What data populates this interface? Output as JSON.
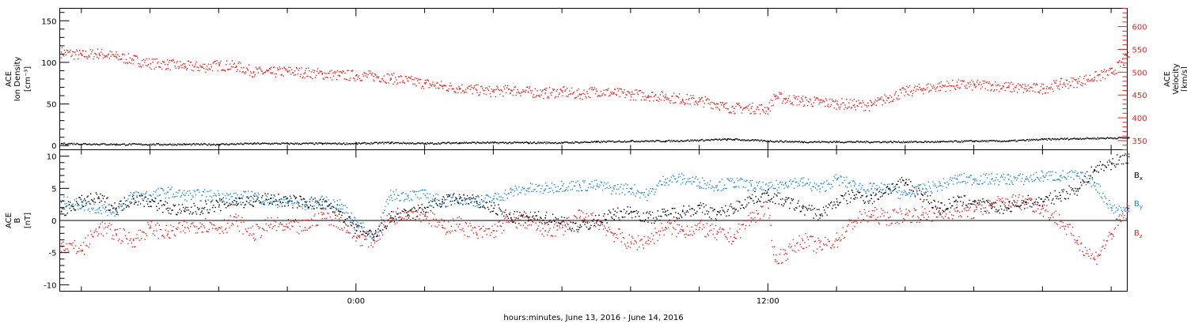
{
  "colors": {
    "black": "#000000",
    "red": "#e8231f",
    "blue": "#1f88d6"
  },
  "xaxis": {
    "label": "hours:minutes, June 13, 2016 - June 14, 2016",
    "range_hours": [
      -8.63,
      22.47
    ],
    "major_ticks": [
      {
        "hour": 0,
        "label": "0:00"
      },
      {
        "hour": 12,
        "label": "12:00"
      }
    ],
    "minor_tick_step_hours": 2
  },
  "chart_data": [
    {
      "type": "scatter",
      "panel": "top",
      "left_axis": {
        "label_lines": [
          "ACE",
          "Ion Density"
        ],
        "unit": "[cm⁻³]",
        "ylim": [
          -5,
          165
        ],
        "ticks": [
          0,
          50,
          100,
          150
        ],
        "tick_labels": [
          "0",
          "50",
          "100",
          "150"
        ]
      },
      "right_axis": {
        "label_lines": [
          "ACE",
          "Velocity"
        ],
        "unit": "[km/s]",
        "ylim": [
          330,
          640
        ],
        "ticks": [
          350,
          400,
          450,
          500,
          550,
          600
        ],
        "tick_labels": [
          "350",
          "400",
          "450",
          "500",
          "550",
          "600"
        ],
        "color": "#e8231f"
      },
      "series": [
        {
          "color": "#000000",
          "axis": "left",
          "x_hours": [
            -8.6,
            -7,
            -5,
            -4,
            -3,
            -2,
            -1,
            0,
            1,
            2,
            3,
            4,
            5,
            6,
            7,
            8,
            9,
            10,
            10.8,
            11,
            12,
            13,
            14,
            15,
            16,
            17,
            18,
            19,
            20,
            21,
            22.5
          ],
          "values": [
            3,
            2,
            2,
            2,
            3,
            3,
            3,
            3,
            4,
            3,
            4,
            4,
            4,
            4,
            5,
            6,
            6,
            7,
            8,
            8,
            6,
            5,
            5,
            5,
            5,
            5,
            6,
            6,
            8,
            9,
            10
          ]
        },
        {
          "color": "#e8231f",
          "axis": "right",
          "x_hours": [
            -8.6,
            -8,
            -7.5,
            -7,
            -6.5,
            -6,
            -5.5,
            -5,
            -4.5,
            -4,
            -3.5,
            -3,
            -2.5,
            -2,
            -1.5,
            -1,
            -0.5,
            0,
            0.5,
            1,
            1.5,
            2,
            2.5,
            3,
            3.5,
            4,
            4.5,
            5,
            5.5,
            6,
            6.5,
            7,
            7.5,
            8,
            8.5,
            9,
            9.5,
            10,
            10.5,
            10.7,
            11,
            11.5,
            12,
            12.2,
            12.5,
            13,
            13.5,
            14,
            14.5,
            15,
            15.5,
            16,
            16.5,
            17,
            17.5,
            18,
            18.5,
            19,
            19.5,
            20,
            20.5,
            21,
            21.5,
            22,
            22.5
          ],
          "values": [
            545,
            538,
            542,
            535,
            528,
            520,
            518,
            514,
            512,
            516,
            514,
            502,
            500,
            503,
            500,
            497,
            494,
            494,
            492,
            488,
            482,
            476,
            470,
            466,
            462,
            458,
            462,
            458,
            455,
            458,
            452,
            460,
            455,
            452,
            450,
            447,
            442,
            438,
            432,
            425,
            422,
            422,
            420,
            448,
            442,
            438,
            435,
            432,
            430,
            428,
            445,
            458,
            465,
            470,
            473,
            472,
            472,
            468,
            465,
            465,
            475,
            480,
            490,
            500,
            535
          ]
        }
      ]
    },
    {
      "type": "scatter",
      "panel": "bottom",
      "left_axis": {
        "label_lines": [
          "ACE",
          "B"
        ],
        "unit": "[nT]",
        "ylim": [
          -11,
          11
        ],
        "ticks": [
          -10,
          -5,
          0,
          5,
          10
        ],
        "tick_labels": [
          "-10",
          "-5",
          "0",
          "5",
          "10"
        ]
      },
      "series": [
        {
          "name": "Bx",
          "color": "#000000",
          "x_hours": [
            -8.6,
            -8,
            -7.5,
            -7,
            -6.5,
            -6,
            -5.5,
            -5,
            -4.5,
            -4,
            -3.5,
            -3,
            -2.5,
            -2,
            -1.5,
            -1,
            -0.5,
            0,
            0.5,
            1,
            1.5,
            2,
            2.5,
            3,
            3.5,
            4,
            4.5,
            5,
            5.5,
            6,
            6.5,
            7,
            7.5,
            8,
            8.5,
            9,
            9.5,
            10,
            10.5,
            11,
            11.5,
            12,
            12.5,
            13,
            13.5,
            14,
            14.5,
            15,
            15.5,
            16,
            16.5,
            17,
            17.5,
            18,
            18.5,
            19,
            19.5,
            20,
            20.5,
            21,
            21.5,
            22,
            22.5
          ],
          "values": [
            1.5,
            3,
            3.5,
            2,
            3.5,
            3,
            2,
            1.5,
            2,
            2.5,
            3,
            3,
            3.5,
            3,
            3,
            2.5,
            1.5,
            -1.5,
            -2.5,
            0.5,
            1,
            2,
            3,
            3.5,
            3,
            2,
            0.5,
            0.5,
            0.5,
            0,
            -1,
            0,
            1,
            1.5,
            0.5,
            1,
            1.5,
            2,
            1,
            2,
            3.5,
            4,
            3,
            2,
            1,
            3,
            4,
            3.5,
            5,
            6,
            4,
            2,
            3,
            3,
            2,
            2,
            3,
            3,
            4,
            5,
            8,
            9,
            10
          ]
        },
        {
          "name": "By",
          "color": "#1f88d6",
          "x_hours": [
            -8.6,
            -8,
            -7.5,
            -7,
            -6.5,
            -6,
            -5.5,
            -5,
            -4.5,
            -4,
            -3.5,
            -3,
            -2.5,
            -2,
            -1.5,
            -1,
            -0.5,
            0,
            0.5,
            1,
            1.5,
            2,
            2.5,
            3,
            3.5,
            4,
            4.5,
            5,
            5.5,
            6,
            6.5,
            7,
            7.5,
            8,
            8.5,
            9,
            9.5,
            10,
            10.5,
            11,
            11.5,
            12,
            12.5,
            13,
            13.5,
            14,
            14.5,
            15,
            15.5,
            16,
            16.5,
            17,
            17.5,
            18,
            18.5,
            19,
            19.5,
            20,
            20.5,
            21,
            21.5,
            22,
            22.5
          ],
          "values": [
            3,
            2.5,
            2,
            1.5,
            4,
            4,
            4.5,
            4,
            4,
            4,
            3.5,
            4,
            3,
            3,
            2.5,
            3,
            2.5,
            0,
            -3,
            4,
            4,
            4,
            3,
            3.5,
            3,
            3.5,
            4.5,
            5,
            5,
            5.5,
            5.5,
            5.5,
            5,
            5,
            4,
            6.5,
            6.5,
            6,
            5.5,
            6,
            5.5,
            5,
            6,
            6,
            5,
            6.5,
            5.5,
            5,
            5,
            4,
            5,
            5.5,
            6.5,
            6.5,
            6.5,
            6.5,
            6.5,
            7,
            7,
            7,
            6,
            2,
            1.5
          ]
        },
        {
          "name": "Bz",
          "color": "#e8231f",
          "x_hours": [
            -8.6,
            -8,
            -7.5,
            -7,
            -6.5,
            -6,
            -5.5,
            -5,
            -4.5,
            -4,
            -3.5,
            -3,
            -2.5,
            -2,
            -1.5,
            -1,
            -0.5,
            0,
            0.5,
            1,
            1.5,
            2,
            2.5,
            3,
            3.5,
            4,
            4.5,
            5,
            5.5,
            6,
            6.5,
            7,
            7.5,
            8,
            8.5,
            9,
            9.5,
            10,
            10.5,
            11,
            11.5,
            12,
            12.2,
            12.5,
            13,
            13.5,
            14,
            14.5,
            15,
            15.5,
            16,
            16.5,
            17,
            17.5,
            18,
            18.5,
            19,
            19.5,
            20,
            20.5,
            21,
            21.5,
            22,
            22.5
          ],
          "values": [
            -3.5,
            -4.5,
            -1,
            -2,
            -3,
            -1,
            -2,
            -1,
            -0.5,
            -1,
            0,
            -2,
            -0.5,
            -1,
            -1,
            1,
            0,
            -2.5,
            -3,
            0.5,
            1.5,
            1,
            -1,
            -0.5,
            -2,
            -1.5,
            0,
            0,
            -1.5,
            -1,
            0.5,
            0,
            -2,
            -3.5,
            -3,
            -1,
            -1.5,
            -1,
            -2,
            -2.5,
            0.5,
            2,
            -6,
            -5,
            -3,
            -4,
            -3,
            0,
            1,
            0.5,
            1,
            1,
            1,
            1.5,
            1.5,
            2.5,
            3,
            3,
            2,
            0,
            -3,
            -6,
            -2,
            2
          ]
        }
      ],
      "legend_position": "right",
      "zero_line": true
    }
  ]
}
